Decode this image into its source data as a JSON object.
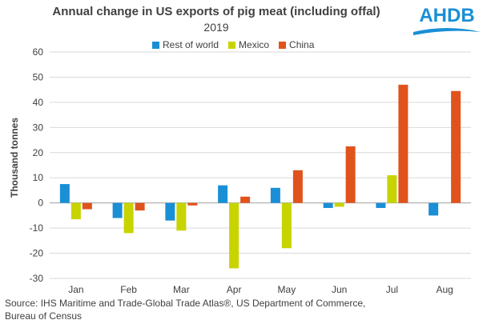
{
  "chart_data": {
    "type": "bar",
    "title": "Annual change in US exports of pig meat (including offal)",
    "subtitle": "2019",
    "ylabel": "Thousand tonnes",
    "xlabel": "",
    "categories": [
      "Jan",
      "Feb",
      "Mar",
      "Apr",
      "May",
      "Jun",
      "Jul",
      "Aug"
    ],
    "ylim": [
      -30,
      60
    ],
    "yticks": [
      -30,
      -20,
      -10,
      0,
      10,
      20,
      30,
      40,
      50,
      60
    ],
    "grid": true,
    "legend_position": "top",
    "series": [
      {
        "name": "Rest of world",
        "color": "#1a8fd6",
        "values": [
          7.5,
          -6,
          -7,
          7,
          6,
          -2,
          -2,
          -5
        ]
      },
      {
        "name": "Mexico",
        "color": "#c8d400",
        "values": [
          -6.5,
          -12,
          -11,
          -26,
          -18,
          -1.5,
          11,
          0
        ]
      },
      {
        "name": "China",
        "color": "#e0531c",
        "values": [
          -2.5,
          -3,
          -1,
          2.5,
          13,
          22.5,
          47,
          44.5
        ]
      }
    ]
  },
  "logo": {
    "text": "AHDB",
    "color": "#1a8fd6"
  },
  "source": "Source: IHS Maritime and Trade-Global Trade Atlas®, US Department of Commerce, Bureau of Census"
}
